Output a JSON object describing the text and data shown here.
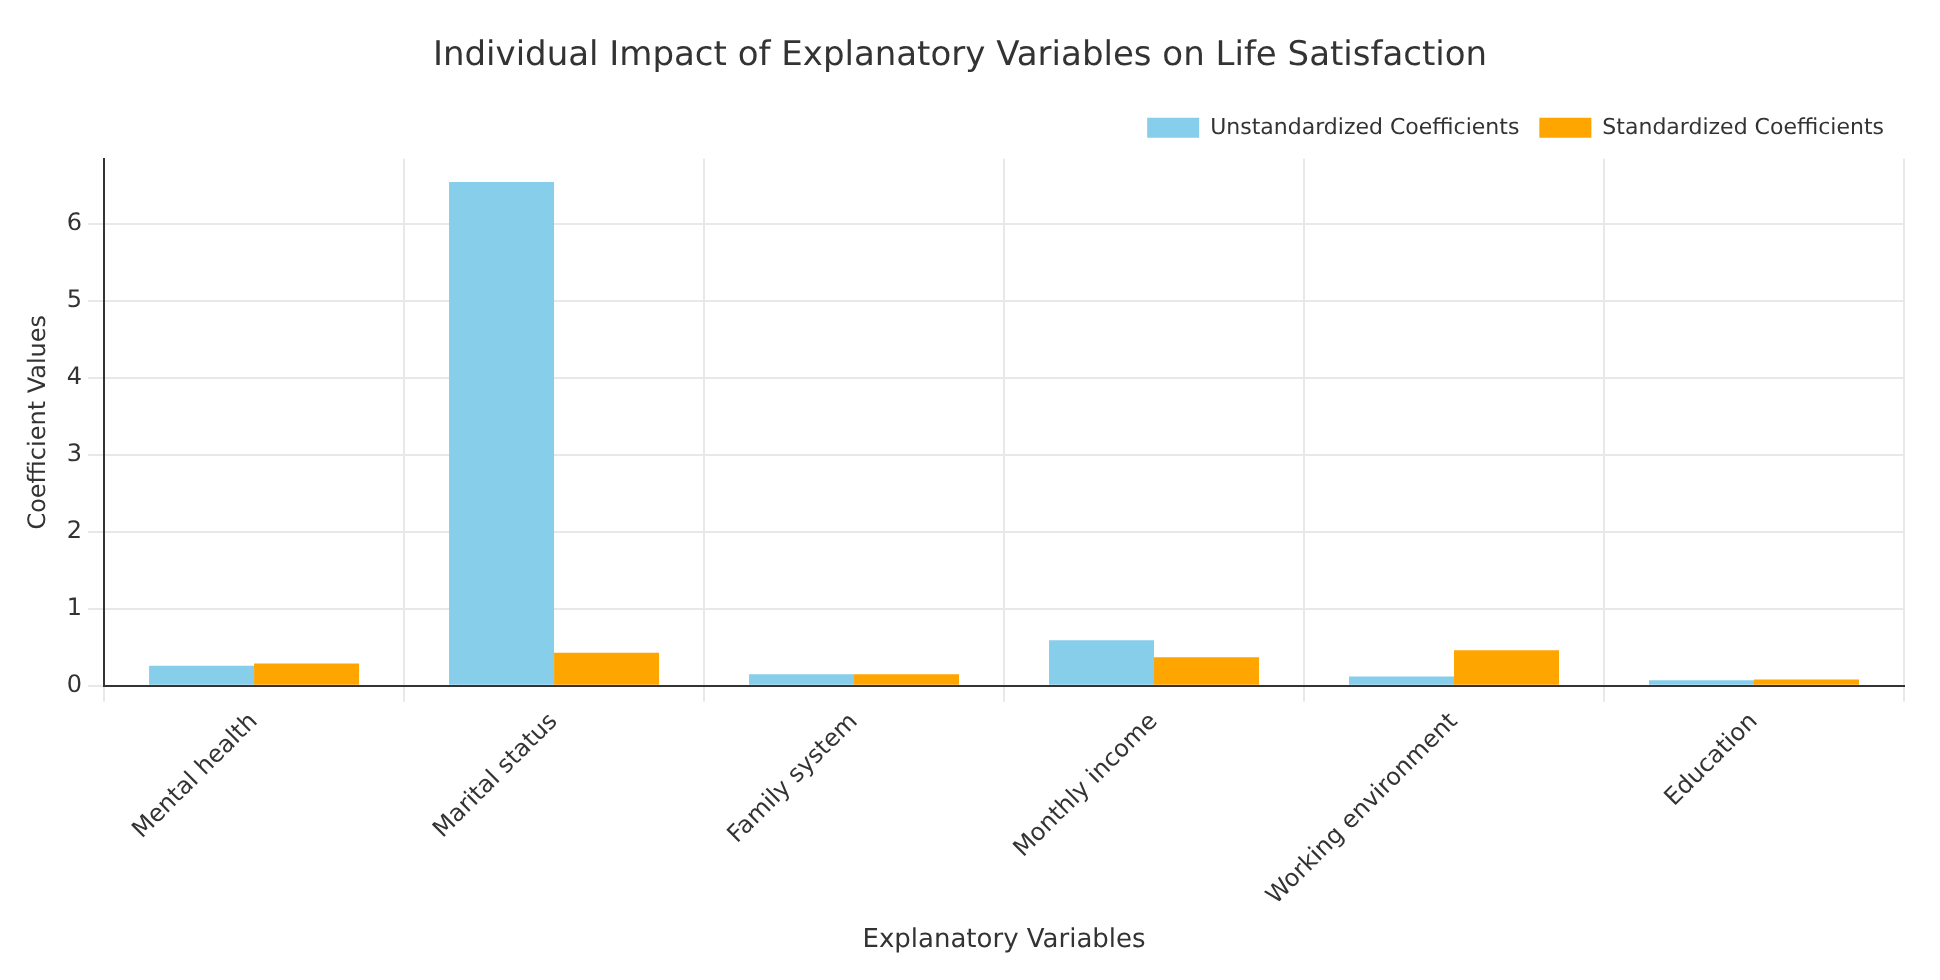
{
  "chart_data": {
    "type": "bar",
    "title": "Individual Impact of Explanatory Variables on Life Satisfaction",
    "xlabel": "Explanatory Variables",
    "ylabel": "Coefficient Values",
    "categories": [
      "Mental health",
      "Marital status",
      "Family system",
      "Monthly income",
      "Working environment",
      "Education"
    ],
    "series": [
      {
        "name": "Unstandardized Coefficients",
        "color": "#87ceeb",
        "values": [
          0.26,
          6.55,
          0.15,
          0.59,
          0.12,
          0.07
        ]
      },
      {
        "name": "Standardized Coefficients",
        "color": "#ffa500",
        "values": [
          0.29,
          0.43,
          0.15,
          0.37,
          0.46,
          0.08
        ]
      }
    ],
    "ylim": [
      0,
      6.85
    ],
    "yticks": [
      0,
      1,
      2,
      3,
      4,
      5,
      6
    ],
    "grid": true,
    "legend": "top right"
  }
}
